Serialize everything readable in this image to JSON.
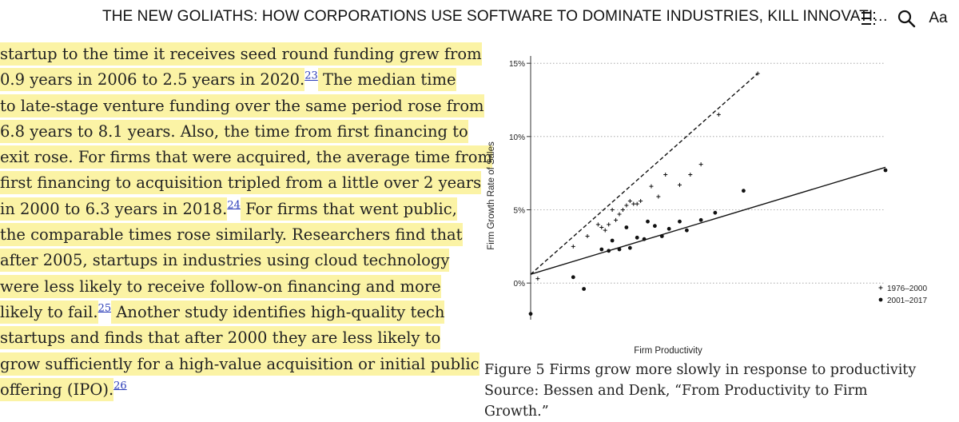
{
  "header": {
    "title": "THE NEW GOLIATHS: HOW CORPORATIONS USE SOFTWARE TO DOMINATE INDUSTRIES, KILL INNOVATI…",
    "font_label": "Aa",
    "icons": [
      "toc-icon",
      "search-icon",
      "font-settings-icon"
    ]
  },
  "text": {
    "lines": [
      {
        "t": "startup to the time it receives seed round funding grew from"
      },
      {
        "t": "0.9 years in 2006 to 2.5 years in 2020.",
        "fn": "23",
        "t2": " The median time"
      },
      {
        "t": "to late-stage venture funding over the same period rose from"
      },
      {
        "t": "6.8 years to 8.1 years. Also, the time from first financing to"
      },
      {
        "t": "exit rose. For firms that were acquired, the average time from"
      },
      {
        "t": "first financing to acquisition tripled from a little over 2 years"
      },
      {
        "t": "in 2000 to 6.3 years in 2018.",
        "fn": "24",
        "t2": " For firms that went public,"
      },
      {
        "t": "the comparable times rose similarly. Researchers find that"
      },
      {
        "t": "after 2005, startups in industries using cloud technology"
      },
      {
        "t": "were less likely to receive follow-on financing and more"
      },
      {
        "t": "likely to fail.",
        "fn": "25",
        "t2": " Another study identifies high-quality tech"
      },
      {
        "t": "startups and finds that after 2000 they are less likely to"
      },
      {
        "t": "grow sufficiently for a high-value acquisition or initial public"
      },
      {
        "t": "offering (IPO).",
        "fn": "26",
        "t2": ""
      }
    ]
  },
  "caption": {
    "line1": "Figure 5  Firms grow more slowly in response to productivity",
    "line2": "Source: Bessen and Denk, “From Productivity to Firm Growth.”"
  },
  "colors": {
    "highlight": "#fbf3a5",
    "footnote": "#2a3cb8"
  },
  "chart_data": {
    "type": "scatter",
    "title": "",
    "xlabel": "Firm Productivity",
    "ylabel": "Firm Growth Rate of Sales",
    "ylim": [
      -2.5,
      15.5
    ],
    "xlim": [
      0,
      100
    ],
    "y_ticks": [
      0,
      5,
      10,
      15
    ],
    "y_tick_labels": [
      "0%",
      "5%",
      "10%",
      "15%"
    ],
    "legend_position": "bottom-right",
    "series": [
      {
        "name": "1976–2000",
        "marker": "+",
        "points": [
          [
            2,
            0.3
          ],
          [
            12,
            2.5
          ],
          [
            16,
            3.2
          ],
          [
            19,
            4.0
          ],
          [
            20,
            3.8
          ],
          [
            21,
            3.6
          ],
          [
            22,
            4.0
          ],
          [
            23,
            5.0
          ],
          [
            24,
            4.3
          ],
          [
            25,
            4.7
          ],
          [
            26,
            5.0
          ],
          [
            27,
            5.3
          ],
          [
            28,
            5.6
          ],
          [
            29,
            5.4
          ],
          [
            30,
            5.4
          ],
          [
            31,
            5.6
          ],
          [
            34,
            6.6
          ],
          [
            36,
            5.9
          ],
          [
            38,
            7.4
          ],
          [
            42,
            6.7
          ],
          [
            45,
            7.4
          ],
          [
            48,
            8.1
          ],
          [
            53,
            11.5
          ],
          [
            64,
            14.3
          ]
        ],
        "fit_line": [
          [
            0,
            0.6
          ],
          [
            64,
            14.3
          ]
        ],
        "fit_style": "dashed"
      },
      {
        "name": "2001–2017",
        "marker": "•",
        "points": [
          [
            0,
            -2.1
          ],
          [
            12,
            0.4
          ],
          [
            15,
            -0.4
          ],
          [
            20,
            2.3
          ],
          [
            22,
            2.2
          ],
          [
            23,
            2.9
          ],
          [
            25,
            2.3
          ],
          [
            27,
            3.8
          ],
          [
            28,
            2.4
          ],
          [
            30,
            3.1
          ],
          [
            32,
            3.0
          ],
          [
            33,
            4.2
          ],
          [
            35,
            3.9
          ],
          [
            37,
            3.2
          ],
          [
            39,
            3.7
          ],
          [
            42,
            4.2
          ],
          [
            44,
            3.6
          ],
          [
            48,
            4.3
          ],
          [
            52,
            4.8
          ],
          [
            60,
            6.3
          ],
          [
            100,
            7.7
          ]
        ],
        "fit_line": [
          [
            0,
            0.6
          ],
          [
            100,
            7.9
          ]
        ],
        "fit_style": "solid"
      }
    ]
  }
}
